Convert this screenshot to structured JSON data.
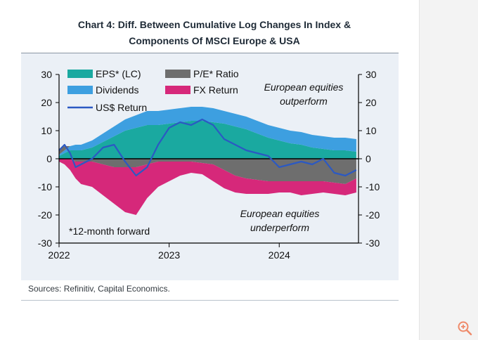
{
  "page": {
    "title_line1": "Chart 4: Diff. Between Cumulative Log Changes In Index &",
    "title_line2": "Components Of MSCI Europe & USA",
    "source": "Sources: Refinitiv, Capital Economics.",
    "zoom_icon": "zoom-in-icon"
  },
  "chart_data": {
    "type": "area",
    "title": "Diff. Between Cumulative Log Changes In Index & Components Of MSCI Europe & USA",
    "xlabel": "",
    "ylabel": "",
    "xlim": [
      2022.0,
      2024.72
    ],
    "ylim": [
      -30,
      30
    ],
    "yticks": [
      30,
      20,
      10,
      0,
      -10,
      -20,
      -30
    ],
    "ytick_labels": [
      "30",
      "20",
      "10",
      "0",
      "-10",
      "-20",
      "-30"
    ],
    "xticks": [
      2022,
      2023,
      2024
    ],
    "xtick_labels": [
      "2022",
      "2023",
      "2024"
    ],
    "legend_placement": "top-left",
    "annotations": {
      "top": [
        "European equities",
        "outperform"
      ],
      "bottom": [
        "European equities",
        "underperform"
      ],
      "footnote": "*12-month forward"
    },
    "colors": {
      "eps": "#1aa9a0",
      "dividends": "#3d9fe0",
      "pe": "#6e6e6e",
      "fx": "#d6287a",
      "usd": "#2b59c3"
    },
    "series": [
      {
        "key": "eps",
        "name": "EPS* (LC)",
        "kind": "stacked-area",
        "x": [
          2022.0,
          2022.05,
          2022.1,
          2022.15,
          2022.2,
          2022.3,
          2022.4,
          2022.5,
          2022.6,
          2022.7,
          2022.8,
          2022.9,
          2023.0,
          2023.1,
          2023.2,
          2023.3,
          2023.4,
          2023.5,
          2023.6,
          2023.7,
          2023.8,
          2023.9,
          2024.0,
          2024.1,
          2024.2,
          2024.3,
          2024.4,
          2024.5,
          2024.6,
          2024.7
        ],
        "values": [
          1,
          2,
          3,
          3,
          3,
          4,
          6,
          8,
          10,
          11,
          12,
          12,
          12.5,
          13,
          13.5,
          13.5,
          13,
          12.5,
          11.5,
          10.5,
          9,
          7.5,
          6.5,
          5.5,
          5,
          4,
          3.5,
          3,
          3,
          2.5
        ]
      },
      {
        "key": "dividends",
        "name": "Dividends",
        "kind": "stacked-area",
        "x": [
          2022.0,
          2022.05,
          2022.1,
          2022.15,
          2022.2,
          2022.3,
          2022.4,
          2022.5,
          2022.6,
          2022.7,
          2022.8,
          2022.9,
          2023.0,
          2023.1,
          2023.2,
          2023.3,
          2023.4,
          2023.5,
          2023.6,
          2023.7,
          2023.8,
          2023.9,
          2024.0,
          2024.1,
          2024.2,
          2024.3,
          2024.4,
          2024.5,
          2024.6,
          2024.7
        ],
        "values": [
          0.5,
          1,
          1.5,
          2,
          2,
          2.5,
          3,
          3.5,
          4,
          4.5,
          5,
          5,
          5,
          5,
          5,
          5,
          5,
          4.5,
          4.5,
          4.5,
          4.5,
          4.5,
          4.5,
          4.5,
          4.5,
          4.5,
          4.5,
          4.5,
          4.5,
          4.5
        ]
      },
      {
        "key": "pe",
        "name": "P/E* Ratio",
        "kind": "stacked-area",
        "x": [
          2022.0,
          2022.05,
          2022.1,
          2022.15,
          2022.2,
          2022.3,
          2022.4,
          2022.5,
          2022.6,
          2022.7,
          2022.8,
          2022.9,
          2023.0,
          2023.1,
          2023.2,
          2023.3,
          2023.4,
          2023.5,
          2023.6,
          2023.7,
          2023.8,
          2023.9,
          2024.0,
          2024.1,
          2024.2,
          2024.3,
          2024.4,
          2024.5,
          2024.6,
          2024.7
        ],
        "values": [
          2,
          1.5,
          0,
          -1,
          -1,
          -1,
          -2,
          -3,
          -3,
          -3,
          -2,
          -1,
          -1,
          -1,
          -1,
          -1.5,
          -2,
          -4,
          -6,
          -7,
          -7.5,
          -8,
          -8,
          -8,
          -8,
          -8,
          -8,
          -8.5,
          -9,
          -7
        ]
      },
      {
        "key": "fx",
        "name": "FX Return",
        "kind": "stacked-area",
        "x": [
          2022.0,
          2022.05,
          2022.1,
          2022.15,
          2022.2,
          2022.3,
          2022.4,
          2022.5,
          2022.6,
          2022.7,
          2022.8,
          2022.9,
          2023.0,
          2023.1,
          2023.2,
          2023.3,
          2023.4,
          2023.5,
          2023.6,
          2023.7,
          2023.8,
          2023.9,
          2024.0,
          2024.1,
          2024.2,
          2024.3,
          2024.4,
          2024.5,
          2024.6,
          2024.7
        ],
        "values": [
          -1,
          -2,
          -4,
          -6,
          -8,
          -9,
          -11,
          -13,
          -16,
          -17,
          -12,
          -9,
          -7,
          -5,
          -4,
          -4,
          -6,
          -6.5,
          -6,
          -5.5,
          -5,
          -4.5,
          -4,
          -4,
          -5,
          -4.5,
          -4,
          -4,
          -4,
          -5
        ]
      },
      {
        "key": "usd",
        "name": "US$ Return",
        "kind": "line",
        "x": [
          2022.0,
          2022.05,
          2022.1,
          2022.15,
          2022.2,
          2022.3,
          2022.4,
          2022.5,
          2022.6,
          2022.7,
          2022.8,
          2022.9,
          2023.0,
          2023.1,
          2023.2,
          2023.3,
          2023.4,
          2023.5,
          2023.6,
          2023.7,
          2023.8,
          2023.9,
          2024.0,
          2024.1,
          2024.2,
          2024.3,
          2024.4,
          2024.5,
          2024.6,
          2024.7
        ],
        "values": [
          3,
          5,
          2,
          -3,
          -2,
          0,
          4,
          5,
          -1,
          -6,
          -3,
          5,
          11,
          13,
          12,
          14,
          12,
          7,
          5,
          3,
          2,
          1,
          -3,
          -2,
          -1,
          -2,
          0,
          -5,
          -6,
          -4
        ]
      }
    ]
  }
}
